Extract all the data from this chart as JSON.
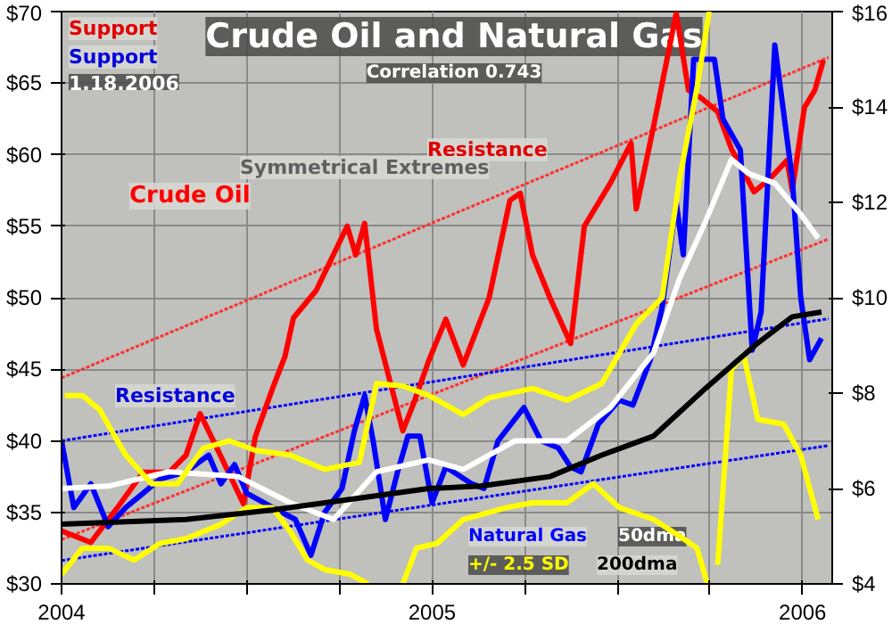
{
  "chart_data": {
    "type": "line",
    "title": "Crude Oil and Natural Gas",
    "subtitle": "Correlation 0.743",
    "xlim": [
      2004,
      2006.08
    ],
    "xticks": [
      2004,
      {
        "value": 2004.25,
        "label": null
      },
      {
        "value": 2004.5,
        "label": null
      },
      {
        "value": 2004.75,
        "label": null
      },
      2005,
      {
        "value": 2005.25,
        "label": null
      },
      {
        "value": 2005.5,
        "label": null
      },
      {
        "value": 2005.75,
        "label": null
      },
      2006
    ],
    "ylim": [
      30,
      70
    ],
    "yticks": [
      {
        "value": 30,
        "label": "$30"
      },
      {
        "value": 35,
        "label": "$35"
      },
      {
        "value": 40,
        "label": "$40"
      },
      {
        "value": 45,
        "label": "$45"
      },
      {
        "value": 50,
        "label": "$50"
      },
      {
        "value": 55,
        "label": "$55"
      },
      {
        "value": 60,
        "label": "$60"
      },
      {
        "value": 65,
        "label": "$65"
      },
      {
        "value": 70,
        "label": "$70"
      }
    ],
    "y2lim": [
      4,
      16
    ],
    "y2ticks": [
      {
        "value": 4,
        "label": "$4"
      },
      {
        "value": 6,
        "label": "$6"
      },
      {
        "value": 8,
        "label": "$8"
      },
      {
        "value": 10,
        "label": "$10"
      },
      {
        "value": 12,
        "label": "$12"
      },
      {
        "value": 14,
        "label": "$14"
      },
      {
        "value": 16,
        "label": "$16"
      }
    ],
    "grid": true,
    "line_style": "solid",
    "series": [
      {
        "name": "Crude Oil",
        "color": "#ff0000",
        "x": [
          2004.0,
          2004.079,
          2004.15,
          2004.22,
          2004.29,
          2004.336,
          2004.374,
          2004.421,
          2004.491,
          2004.523,
          2004.57,
          2004.603,
          2004.626,
          2004.687,
          2004.771,
          2004.794,
          2004.818,
          2004.85,
          2004.888,
          2004.921,
          2004.953,
          2004.991,
          2005.037,
          2005.084,
          2005.154,
          2005.21,
          2005.238,
          2005.271,
          2005.318,
          2005.374,
          2005.411,
          2005.481,
          2005.537,
          2005.551,
          2005.598,
          2005.659,
          2005.692,
          2005.724,
          2005.771,
          2005.808,
          2005.869,
          2005.911,
          2005.958,
          2005.972,
          2006.005,
          2006.033,
          2006.056
        ],
        "values": [
          33.7,
          32.9,
          35.3,
          37.8,
          37.8,
          39.0,
          41.9,
          39.4,
          35.6,
          40.3,
          43.7,
          45.9,
          48.6,
          50.5,
          55.0,
          53.0,
          55.2,
          47.8,
          44.0,
          40.7,
          42.8,
          45.6,
          48.5,
          45.3,
          50.0,
          56.8,
          57.3,
          53.0,
          50.0,
          46.8,
          55.0,
          58.0,
          60.8,
          56.2,
          62.0,
          69.9,
          64.5,
          64.0,
          63.0,
          60.4,
          57.4,
          58.3,
          59.6,
          57.5,
          63.3,
          64.5,
          66.6
        ]
      },
      {
        "name": "Natural Gas",
        "color": "#0000ff",
        "axis": "y2",
        "x": [
          2004.0,
          2004.033,
          2004.079,
          2004.126,
          2004.173,
          2004.22,
          2004.266,
          2004.336,
          2004.397,
          2004.43,
          2004.467,
          2004.5,
          2004.57,
          2004.631,
          2004.673,
          2004.71,
          2004.757,
          2004.79,
          2004.818,
          2004.841,
          2004.874,
          2004.907,
          2004.935,
          2004.967,
          2005.0,
          2005.037,
          2005.107,
          2005.14,
          2005.178,
          2005.248,
          2005.294,
          2005.341,
          2005.374,
          2005.402,
          2005.449,
          2005.505,
          2005.542,
          2005.589,
          2005.621,
          2005.659,
          2005.678,
          2005.706,
          2005.762,
          2005.785,
          2005.832,
          2005.864,
          2005.888,
          2005.925,
          2005.972,
          2005.995,
          2006.019,
          2006.051
        ],
        "values": [
          7.0,
          5.6,
          6.1,
          5.2,
          5.6,
          5.9,
          6.2,
          6.35,
          6.7,
          6.1,
          6.5,
          5.9,
          5.6,
          5.35,
          4.6,
          5.5,
          6.0,
          7.2,
          7.95,
          7.0,
          5.35,
          6.35,
          7.1,
          7.1,
          5.7,
          6.45,
          6.1,
          6.0,
          7.0,
          7.7,
          7.0,
          6.85,
          6.45,
          6.35,
          7.35,
          7.85,
          7.75,
          8.7,
          9.8,
          12.0,
          10.9,
          15.0,
          15.0,
          13.75,
          13.1,
          8.9,
          9.7,
          15.3,
          12.5,
          10.0,
          8.7,
          9.15
        ]
      },
      {
        "name": "50dma",
        "color": "#ffffff",
        "axis": "y2",
        "x": [
          2004.0,
          2004.126,
          2004.29,
          2004.477,
          2004.617,
          2004.734,
          2004.85,
          2004.991,
          2005.084,
          2005.224,
          2005.364,
          2005.481,
          2005.598,
          2005.668,
          2005.738,
          2005.808,
          2005.855,
          2005.925,
          2005.995,
          2006.042
        ],
        "values": [
          6.0,
          6.05,
          6.35,
          6.25,
          5.7,
          5.35,
          6.35,
          6.6,
          6.4,
          7.0,
          7.0,
          7.7,
          8.85,
          10.4,
          11.6,
          12.9,
          12.6,
          12.4,
          11.75,
          11.25
        ]
      },
      {
        "name": "+/- 2.5 SD",
        "color": "#ffff00",
        "axis": "y2",
        "x": [
          2004.009,
          2004.056,
          2004.103,
          2004.173,
          2004.243,
          2004.313,
          2004.383,
          2004.453,
          2004.523,
          2004.617,
          2004.71,
          2004.804,
          2004.85,
          2004.921,
          2004.991,
          2005.084,
          2005.154,
          2005.271,
          2005.364,
          2005.458,
          2005.551,
          2005.621,
          2005.668,
          2005.715,
          2005.748
        ],
        "values": [
          7.95,
          7.95,
          7.65,
          6.7,
          6.1,
          6.1,
          6.85,
          7.0,
          6.8,
          6.7,
          6.4,
          6.55,
          8.2,
          8.15,
          7.95,
          7.55,
          7.9,
          8.1,
          7.85,
          8.2,
          9.45,
          10.0,
          12.5,
          14.4,
          16.0
        ]
      },
      {
        "color": "#ffff00",
        "axis": "y2",
        "x": [
          2004.0,
          2004.056,
          2004.126,
          2004.196,
          2004.266,
          2004.336,
          2004.43,
          2004.5,
          2004.57,
          2004.617,
          2004.664,
          2004.71,
          2004.78,
          2004.827,
          2004.874,
          2004.921,
          2004.958,
          2005.014,
          2005.084,
          2005.201,
          2005.271,
          2005.364,
          2005.435,
          2005.505,
          2005.598,
          2005.668,
          2005.715,
          2005.743,
          2005.757,
          2005.771,
          2005.808,
          2005.841,
          2005.879,
          2005.949,
          2005.995,
          2006.042
        ],
        "values": [
          4.2,
          4.75,
          4.75,
          4.5,
          4.85,
          4.95,
          5.25,
          5.6,
          5.6,
          5.1,
          4.5,
          4.3,
          4.2,
          4.0,
          null,
          4.0,
          4.75,
          4.85,
          5.35,
          5.6,
          5.7,
          5.7,
          6.1,
          5.6,
          5.35,
          5.0,
          4.75,
          4.0,
          null,
          4.4,
          8.5,
          8.8,
          7.45,
          7.35,
          6.7,
          5.35
        ]
      },
      {
        "name": "200dma",
        "color": "#000000",
        "axis": "y2",
        "x": [
          2004.0,
          2004.336,
          2004.57,
          2004.804,
          2004.991,
          2005.131,
          2005.318,
          2005.458,
          2005.598,
          2005.738,
          2005.879,
          2005.972,
          2006.051
        ],
        "values": [
          5.25,
          5.35,
          5.55,
          5.8,
          6.0,
          6.05,
          6.25,
          6.7,
          7.1,
          8.1,
          9.05,
          9.6,
          9.7
        ]
      },
      {
        "type": "line",
        "line_style": "dotted",
        "color": "#ff3030",
        "x": [
          2004.0,
          2006.07
        ],
        "values": [
          44.4,
          66.8
        ]
      },
      {
        "type": "line",
        "line_style": "dotted",
        "color": "#ff3030",
        "x": [
          2004.0,
          2006.07
        ],
        "values": [
          33.1,
          54.1
        ]
      },
      {
        "type": "line",
        "line_style": "dotted",
        "color": "#0000ff",
        "axis": "y2",
        "x": [
          2004.0,
          2006.07
        ],
        "values": [
          7.0,
          9.56
        ]
      },
      {
        "type": "line",
        "line_style": "dotted",
        "color": "#0000ff",
        "axis": "y2",
        "x": [
          2004.0,
          2006.07
        ],
        "values": [
          4.49,
          6.9
        ]
      }
    ],
    "annotations": [
      "Resistance",
      "Support",
      "Resistance",
      "Support",
      "Symmetrical Extremes",
      "1.18.2006"
    ]
  }
}
